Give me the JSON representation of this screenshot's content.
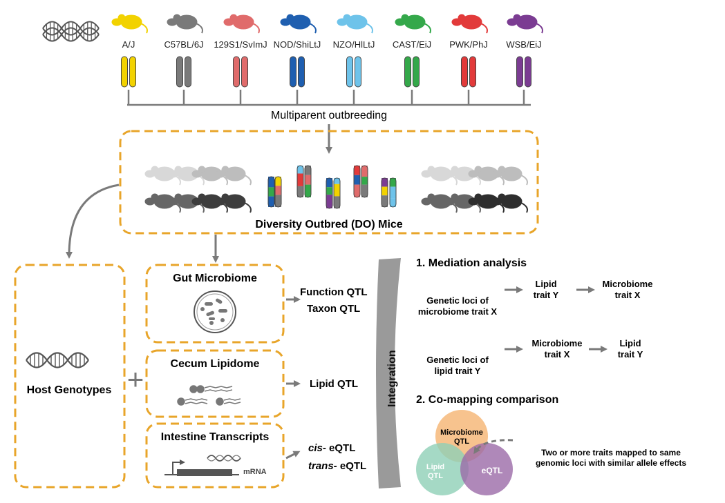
{
  "strains": [
    {
      "name": "A/J",
      "color": "#f2d200"
    },
    {
      "name": "C57BL/6J",
      "color": "#7a7a7a"
    },
    {
      "name": "129S1/SvImJ",
      "color": "#e06b6b"
    },
    {
      "name": "NOD/ShiLtJ",
      "color": "#1f5fb0"
    },
    {
      "name": "NZO/HlLtJ",
      "color": "#6ec3ea"
    },
    {
      "name": "CAST/EiJ",
      "color": "#34a84a"
    },
    {
      "name": "PWK/PhJ",
      "color": "#e23a3a"
    },
    {
      "name": "WSB/EiJ",
      "color": "#7b3c92"
    }
  ],
  "outbreeding_label": "Multiparent outbreeding",
  "do_label": "Diversity Outbred (DO) Mice",
  "host": {
    "label": "Host Genotypes"
  },
  "plus": "+",
  "gut": {
    "title": "Gut Microbiome",
    "qtl1": "Function QTL",
    "qtl2": "Taxon QTL"
  },
  "lipid": {
    "title": "Cecum Lipidome",
    "qtl": "Lipid QTL"
  },
  "intestine": {
    "title": "Intestine Transcripts",
    "mrna": "mRNA",
    "cis": "cis-",
    "trans": "trans-",
    "eqtl": " eQTL"
  },
  "integration": "Integration",
  "mediation": {
    "title": "1. Mediation analysis",
    "row1": {
      "loci_line1": "Genetic loci of",
      "loci_line2": "microbiome trait X",
      "mid_line1": "Lipid",
      "mid_line2": "trait Y",
      "end_line1": "Microbiome",
      "end_line2": "trait X"
    },
    "row2": {
      "loci_line1": "Genetic loci of",
      "loci_line2": "lipid trait Y",
      "mid_line1": "Microbiome",
      "mid_line2": "trait X",
      "end_line1": "Lipid",
      "end_line2": "trait Y"
    }
  },
  "comapping": {
    "title": "2. Co-mapping comparison",
    "micro_line1": "Microbiome",
    "micro_line2": "QTL",
    "lipid_line1": "Lipid",
    "lipid_line2": "QTL",
    "eqtl": "eQTL",
    "note_line1": "Two or more traits mapped to same",
    "note_line2": "genomic loci with similar allele effects",
    "colors": {
      "micro": "#f6b97a",
      "lipid": "#8ecfb7",
      "eqtl": "#9b6aa8"
    }
  }
}
